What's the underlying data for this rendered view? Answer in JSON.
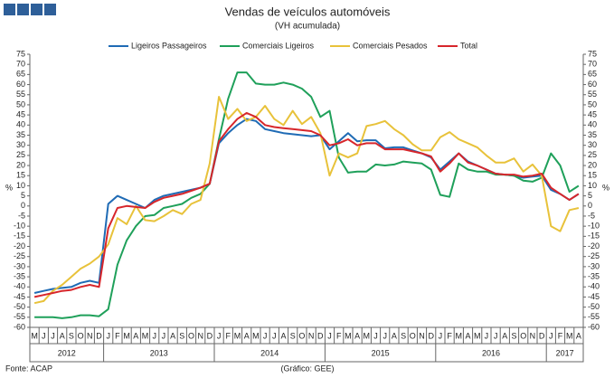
{
  "chart_data": {
    "type": "line",
    "title": "Vendas de veículos automóveis",
    "subtitle": "(VH acumulada)",
    "y_label": "%",
    "source": "Fonte: ACAP",
    "credit": "(Gráfico: GEE)",
    "categories": [
      "M",
      "J",
      "J",
      "A",
      "S",
      "O",
      "N",
      "D",
      "J",
      "F",
      "M",
      "A",
      "M",
      "J",
      "J",
      "A",
      "S",
      "O",
      "N",
      "D",
      "J",
      "F",
      "M",
      "A",
      "M",
      "J",
      "J",
      "A",
      "S",
      "O",
      "N",
      "D",
      "J",
      "F",
      "M",
      "A",
      "M",
      "J",
      "J",
      "A",
      "S",
      "O",
      "N",
      "D",
      "J",
      "F",
      "M",
      "A",
      "M",
      "J",
      "J",
      "A",
      "S",
      "O",
      "N",
      "D",
      "J",
      "F",
      "M",
      "A"
    ],
    "x_groups": [
      {
        "label": "2012",
        "count": 8
      },
      {
        "label": "2013",
        "count": 12
      },
      {
        "label": "2014",
        "count": 12
      },
      {
        "label": "2015",
        "count": 12
      },
      {
        "label": "2016",
        "count": 12
      },
      {
        "label": "2017",
        "count": 4
      }
    ],
    "ylim": [
      -60,
      75
    ],
    "yticks": [
      -60,
      -55,
      -50,
      -45,
      -40,
      -35,
      -30,
      -25,
      -20,
      -15,
      -10,
      -5,
      0,
      5,
      10,
      15,
      20,
      25,
      30,
      35,
      40,
      45,
      50,
      55,
      60,
      65,
      70,
      75
    ],
    "grid": false,
    "legend": "top",
    "series": [
      {
        "name": "Ligeiros Passageiros",
        "color": "#1f6bb5",
        "values": [
          -43,
          -42,
          -41,
          -40.5,
          -40,
          -38,
          -37,
          -38,
          1,
          5,
          3,
          1,
          -1,
          3,
          5,
          6,
          7,
          8,
          9,
          11,
          31,
          36,
          40,
          43,
          42,
          38,
          37,
          36,
          35.5,
          35,
          34.5,
          35,
          28,
          32,
          36,
          32,
          32.5,
          32.5,
          28.5,
          29,
          29,
          27.5,
          26,
          24,
          18,
          22,
          26,
          22,
          20,
          18,
          16,
          15.5,
          15,
          14,
          14.5,
          15,
          8,
          6,
          3,
          6
        ]
      },
      {
        "name": "Comerciais Ligeiros",
        "color": "#1fa05a",
        "values": [
          -55,
          -55,
          -55,
          -55.5,
          -55,
          -54,
          -54,
          -54.5,
          -51,
          -29,
          -17,
          -10,
          -5,
          -4.5,
          -1,
          0,
          1,
          4,
          6,
          11,
          33,
          53,
          66,
          66,
          60.5,
          60,
          60,
          61,
          60,
          58,
          54,
          44,
          47,
          24,
          16.5,
          17,
          17,
          20.5,
          20,
          20.5,
          22,
          21.5,
          21,
          18,
          5.5,
          4.5,
          21,
          18,
          17,
          17,
          15.5,
          15.5,
          15,
          12.5,
          12,
          14,
          26,
          20,
          7,
          10
        ]
      },
      {
        "name": "Comerciais Pesados",
        "color": "#e8c23a",
        "values": [
          -48,
          -47,
          -42,
          -39,
          -35,
          -31,
          -28.5,
          -25,
          -19,
          -6,
          -9,
          0,
          -7,
          -7.5,
          -5,
          -2,
          -4,
          1,
          3,
          21,
          54,
          43,
          48,
          42,
          44,
          49.5,
          43,
          40,
          47,
          40.5,
          44,
          36,
          15,
          26,
          24,
          26,
          39.5,
          40.5,
          42,
          38,
          35,
          30.5,
          27.5,
          27.5,
          34,
          36.5,
          33,
          31,
          29,
          25,
          21.5,
          21.5,
          23.5,
          17,
          20.5,
          15,
          -10,
          -12.5,
          -2,
          -1
        ]
      },
      {
        "name": "Total",
        "color": "#d7262b",
        "values": [
          -45,
          -44,
          -43,
          -42,
          -41.5,
          -40,
          -39,
          -40,
          -11,
          -1,
          0,
          -0.5,
          -1,
          2,
          4,
          5,
          6,
          7.5,
          9,
          11,
          32,
          38,
          43,
          46,
          44,
          40,
          39,
          38.5,
          38,
          37.5,
          37,
          35,
          30,
          31,
          33,
          30,
          31,
          31,
          28,
          28,
          28,
          27,
          26,
          24.5,
          17,
          21,
          26,
          21.5,
          20,
          18,
          16,
          15.5,
          15.5,
          14.5,
          15,
          16,
          9,
          6,
          3,
          6
        ]
      }
    ]
  }
}
